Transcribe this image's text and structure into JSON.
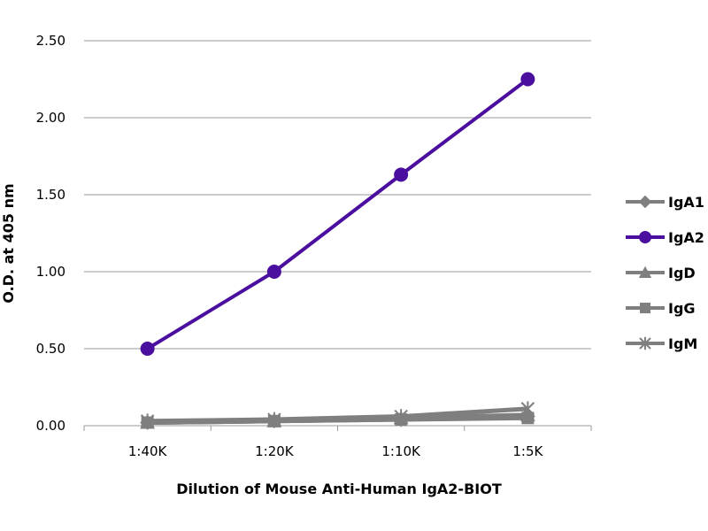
{
  "chart_data": {
    "type": "line",
    "categories": [
      "1:40K",
      "1:20K",
      "1:10K",
      "1:5K"
    ],
    "xlabel": "Dilution of Mouse Anti-Human IgA2-BIOT",
    "ylabel": "O.D. at 405 nm",
    "ylim": [
      0,
      2.5
    ],
    "yticks": [
      "0.00",
      "0.50",
      "1.00",
      "1.50",
      "2.00",
      "2.50"
    ],
    "grid": true,
    "legend": "right",
    "series": [
      {
        "name": "IgA1",
        "values": [
          0.02,
          0.03,
          0.04,
          0.06
        ],
        "color": "#7f7f7f",
        "marker": "diamond"
      },
      {
        "name": "IgA2",
        "values": [
          0.5,
          1.0,
          1.63,
          2.25
        ],
        "color": "#4b0fa0",
        "marker": "circle"
      },
      {
        "name": "IgD",
        "values": [
          0.02,
          0.03,
          0.05,
          0.07
        ],
        "color": "#7f7f7f",
        "marker": "triangle"
      },
      {
        "name": "IgG",
        "values": [
          0.02,
          0.03,
          0.04,
          0.05
        ],
        "color": "#7f7f7f",
        "marker": "square"
      },
      {
        "name": "IgM",
        "values": [
          0.03,
          0.04,
          0.06,
          0.11
        ],
        "color": "#7f7f7f",
        "marker": "star"
      }
    ]
  }
}
